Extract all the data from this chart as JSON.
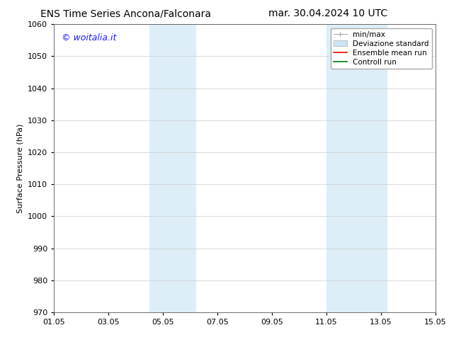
{
  "title_left": "ENS Time Series Ancona/Falconara",
  "title_right": "mar. 30.04.2024 10 UTC",
  "ylabel": "Surface Pressure (hPa)",
  "ylim": [
    970,
    1060
  ],
  "yticks": [
    970,
    980,
    990,
    1000,
    1010,
    1020,
    1030,
    1040,
    1050,
    1060
  ],
  "xtick_labels": [
    "01.05",
    "03.05",
    "05.05",
    "07.05",
    "09.05",
    "11.05",
    "13.05",
    "15.05"
  ],
  "xtick_positions": [
    0,
    2,
    4,
    6,
    8,
    10,
    12,
    14
  ],
  "xlim": [
    0,
    14
  ],
  "shaded_regions": [
    {
      "x_start": 3.5,
      "x_end": 4.2,
      "color": "#ddeeff"
    },
    {
      "x_start": 4.2,
      "x_end": 5.2,
      "color": "#ddeeff"
    },
    {
      "x_start": 10.0,
      "x_end": 10.8,
      "color": "#ddeeff"
    },
    {
      "x_start": 10.8,
      "x_end": 12.2,
      "color": "#ddeeff"
    }
  ],
  "watermark_text": "© woitalia.it",
  "watermark_color": "#1a1aff",
  "background_color": "#ffffff",
  "legend_entries": [
    {
      "label": "min/max",
      "color": "#aaaaaa",
      "style": "minmax"
    },
    {
      "label": "Deviazione standard",
      "color": "#cce5f5",
      "style": "std"
    },
    {
      "label": "Ensemble mean run",
      "color": "#ff0000",
      "style": "line"
    },
    {
      "label": "Controll run",
      "color": "#007700",
      "style": "line"
    }
  ],
  "title_fontsize": 10,
  "axis_fontsize": 8,
  "tick_fontsize": 8,
  "watermark_fontsize": 9,
  "legend_fontsize": 7.5
}
